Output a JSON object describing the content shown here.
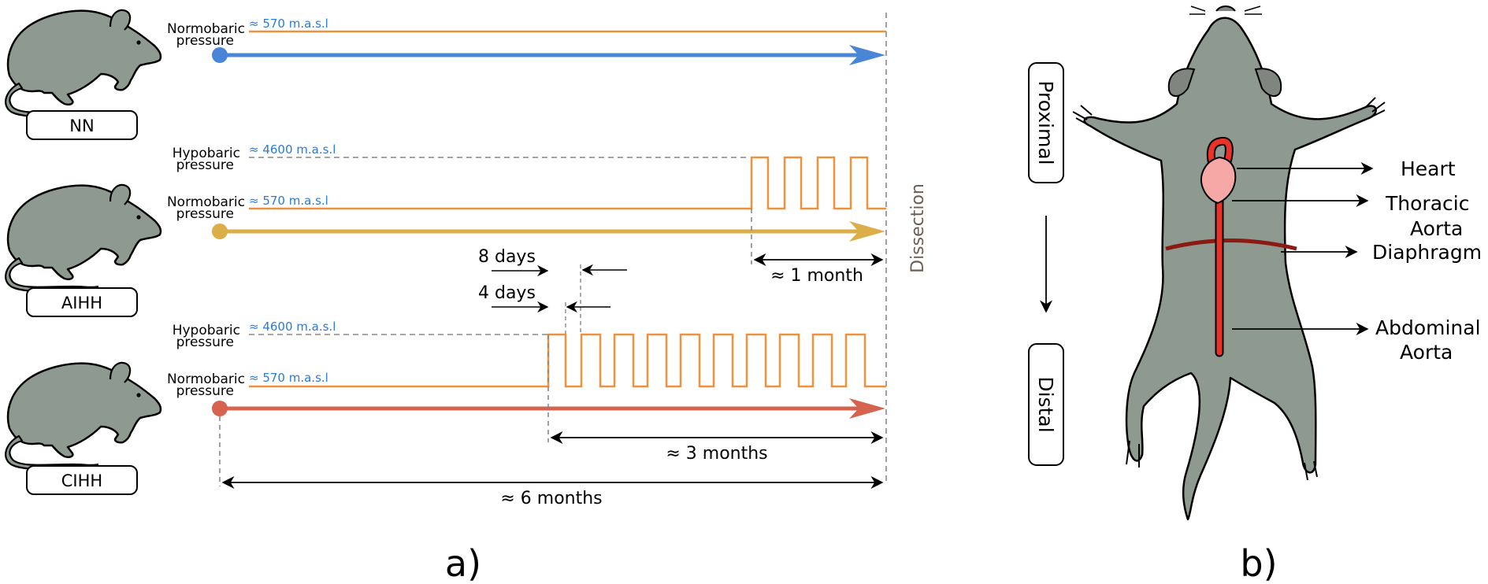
{
  "panel_a": {
    "label": "a)",
    "dissection": "Dissection",
    "groups": {
      "nn": {
        "name": "NN",
        "normobaric_label": [
          "Normobaric",
          "pressure"
        ],
        "normobaric_alt": "≈ 570 m.a.s.l"
      },
      "aihh": {
        "name": "AIHH",
        "hypobaric_label": [
          "Hypobaric",
          "pressure"
        ],
        "hypobaric_alt": "≈ 4600 m.a.s.l",
        "normobaric_label": [
          "Normobaric",
          "pressure"
        ],
        "normobaric_alt": "≈ 570 m.a.s.l",
        "duration": "≈ 1 month"
      },
      "cihh": {
        "name": "CIHH",
        "hypobaric_label": [
          "Hypobaric",
          "pressure"
        ],
        "hypobaric_alt": "≈ 4600 m.a.s.l",
        "normobaric_label": [
          "Normobaric",
          "pressure"
        ],
        "normobaric_alt": "≈ 570 m.a.s.l",
        "hypoxia_duration": "≈ 3 months",
        "total_duration": "≈ 6 months"
      }
    },
    "intervals": {
      "eight_days": "8 days",
      "four_days": "4 days"
    }
  },
  "panel_b": {
    "label": "b)",
    "proximal": "Proximal",
    "distal": "Distal",
    "organs": {
      "heart": "Heart",
      "thoracic": [
        "Thoracic",
        "Aorta"
      ],
      "diaphragm": "Diaphragm",
      "abdominal": [
        "Abdominal",
        "Aorta"
      ]
    }
  },
  "colors": {
    "nn": "#4a86d8",
    "aihh": "#dcae48",
    "cihh": "#d6634e",
    "pressure_line": "#f0913f",
    "altitude_text": "#2a7bdc",
    "rat_body": "#8e9a8f",
    "aorta": "#e8322a",
    "heart": "#f6a8a6",
    "diaphragm": "#8b1a12"
  }
}
